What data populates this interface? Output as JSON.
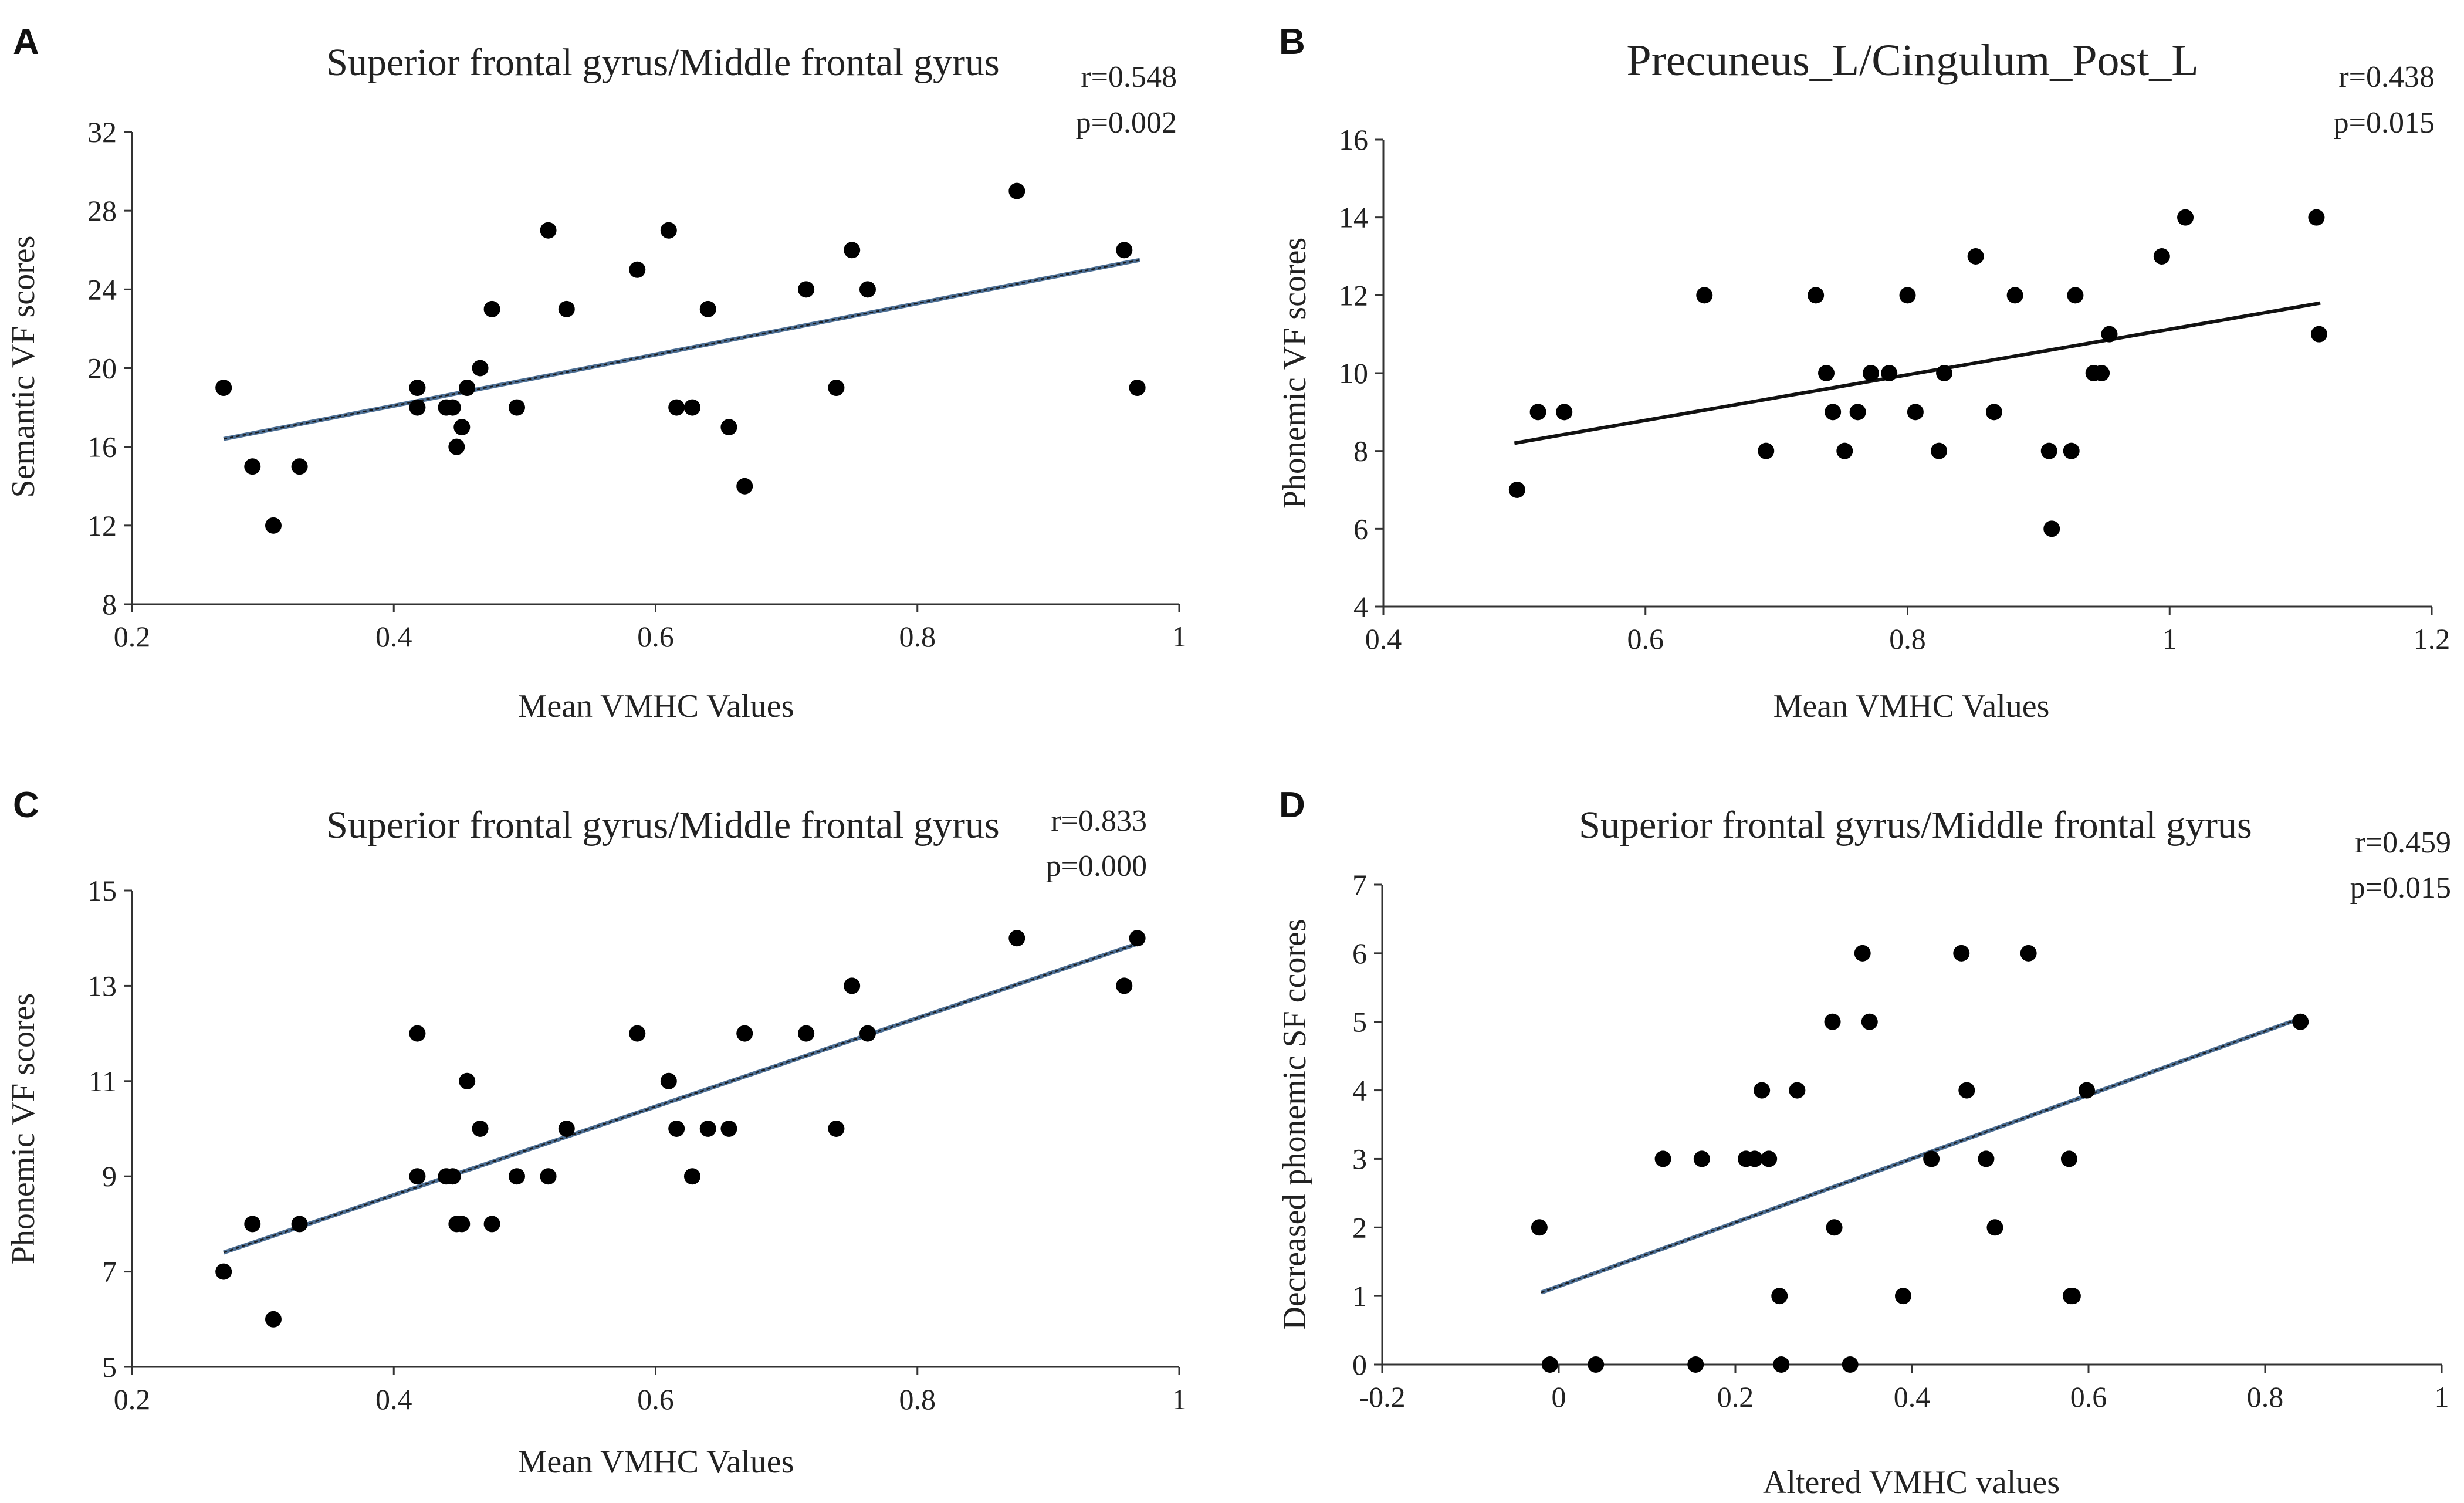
{
  "chart_data": [
    {
      "panel": "A",
      "type": "scatter",
      "title": "Superior frontal gyrus/Middle frontal gyrus",
      "xlabel": "Mean VMHC  Values",
      "ylabel": "Semantic VF scores",
      "xlim": [
        0.2,
        1.0
      ],
      "ylim": [
        8,
        32
      ],
      "xticks": [
        "0.2",
        "0.4",
        "0.6",
        "0.8",
        "1"
      ],
      "yticks": [
        "8",
        "12",
        "16",
        "20",
        "24",
        "28",
        "32"
      ],
      "r_label": "r=0.548",
      "p_label": "p=0.002",
      "trend": {
        "x": [
          0.27,
          0.97
        ],
        "y": [
          16.4,
          25.5
        ],
        "style": "dashed-blue"
      },
      "x": [
        0.27,
        0.292,
        0.308,
        0.328,
        0.418,
        0.418,
        0.44,
        0.445,
        0.448,
        0.452,
        0.456,
        0.466,
        0.475,
        0.494,
        0.518,
        0.532,
        0.586,
        0.61,
        0.616,
        0.628,
        0.64,
        0.656,
        0.668,
        0.715,
        0.738,
        0.75,
        0.762,
        0.876,
        0.958,
        0.968
      ],
      "y": [
        19,
        15,
        12,
        15,
        19,
        18,
        18,
        18,
        16,
        17,
        19,
        20,
        23,
        18,
        27,
        23,
        25,
        27,
        18,
        18,
        23,
        17,
        14,
        24,
        19,
        26,
        24,
        29,
        26,
        19
      ]
    },
    {
      "panel": "B",
      "type": "scatter",
      "title": "Precuneus_L/Cingulum_Post_L",
      "xlabel": "Mean VMHC  Values",
      "ylabel": "Phonemic VF scores",
      "xlim": [
        0.4,
        1.2
      ],
      "ylim": [
        4,
        16
      ],
      "xticks": [
        "0.4",
        "0.6",
        "0.8",
        "1",
        "1.2"
      ],
      "yticks": [
        "4",
        "6",
        "8",
        "10",
        "12",
        "14",
        "16"
      ],
      "r_label": "r=0.438",
      "p_label": "p=0.015",
      "trend": {
        "x": [
          0.5,
          1.115
        ],
        "y": [
          8.2,
          11.8
        ],
        "style": "solid-black"
      },
      "x": [
        0.502,
        0.518,
        0.538,
        0.645,
        0.692,
        0.73,
        0.738,
        0.743,
        0.752,
        0.762,
        0.772,
        0.786,
        0.8,
        0.806,
        0.824,
        0.828,
        0.852,
        0.866,
        0.882,
        0.908,
        0.91,
        0.925,
        0.928,
        0.942,
        0.948,
        0.954,
        0.994,
        1.012,
        1.112,
        1.114
      ],
      "y": [
        7,
        9,
        9,
        12,
        8,
        12,
        10,
        9,
        8,
        9,
        10,
        10,
        12,
        9,
        8,
        10,
        13,
        9,
        12,
        8,
        6,
        8,
        12,
        10,
        10,
        11,
        13,
        14,
        14,
        11
      ]
    },
    {
      "panel": "C",
      "type": "scatter",
      "title": "Superior frontal gyrus/Middle frontal gyrus",
      "xlabel": "Mean VMHC  Values",
      "ylabel": "Phonemic VF scores",
      "xlim": [
        0.2,
        1.0
      ],
      "ylim": [
        5,
        15
      ],
      "xticks": [
        "0.2",
        "0.4",
        "0.6",
        "0.8",
        "1"
      ],
      "yticks": [
        "5",
        "7",
        "9",
        "11",
        "13",
        "15"
      ],
      "r_label": "r=0.833",
      "p_label": "p=0.000",
      "trend": {
        "x": [
          0.27,
          0.97
        ],
        "y": [
          7.4,
          13.9
        ],
        "style": "dashed-blue"
      },
      "x": [
        0.27,
        0.292,
        0.308,
        0.328,
        0.418,
        0.418,
        0.44,
        0.445,
        0.448,
        0.452,
        0.456,
        0.466,
        0.475,
        0.494,
        0.518,
        0.532,
        0.586,
        0.61,
        0.616,
        0.628,
        0.64,
        0.656,
        0.668,
        0.715,
        0.738,
        0.75,
        0.762,
        0.876,
        0.958,
        0.968
      ],
      "y": [
        7,
        8,
        6,
        8,
        12,
        9,
        9,
        9,
        8,
        8,
        11,
        10,
        8,
        9,
        9,
        10,
        12,
        11,
        10,
        9,
        10,
        10,
        12,
        12,
        10,
        13,
        12,
        14,
        13,
        14
      ]
    },
    {
      "panel": "D",
      "type": "scatter",
      "title": "Superior frontal gyrus/Middle frontal gyrus",
      "xlabel": "Altered VMHC  values",
      "ylabel": "Decreased phonemic SF ccores",
      "xlim": [
        -0.2,
        1.0
      ],
      "ylim": [
        0,
        7
      ],
      "xticks": [
        "-0.2",
        "0",
        "0.2",
        "0.4",
        "0.6",
        "0.8",
        "1"
      ],
      "yticks": [
        "0",
        "1",
        "2",
        "3",
        "4",
        "5",
        "6",
        "7"
      ],
      "r_label": "r=0.459",
      "p_label": "p=0.015",
      "trend": {
        "x": [
          -0.02,
          0.84
        ],
        "y": [
          1.05,
          5.05
        ],
        "style": "dashed-blue"
      },
      "x": [
        -0.022,
        -0.01,
        0.042,
        0.118,
        0.155,
        0.162,
        0.212,
        0.222,
        0.23,
        0.238,
        0.25,
        0.252,
        0.27,
        0.31,
        0.312,
        0.33,
        0.344,
        0.352,
        0.39,
        0.422,
        0.456,
        0.462,
        0.484,
        0.494,
        0.532,
        0.578,
        0.58,
        0.582,
        0.598,
        0.84
      ],
      "y": [
        2,
        0,
        0,
        3,
        0,
        3,
        3,
        3,
        4,
        3,
        1,
        0,
        4,
        5,
        2,
        0,
        6,
        5,
        1,
        3,
        6,
        4,
        3,
        2,
        6,
        3,
        1,
        1,
        4,
        5
      ]
    }
  ]
}
